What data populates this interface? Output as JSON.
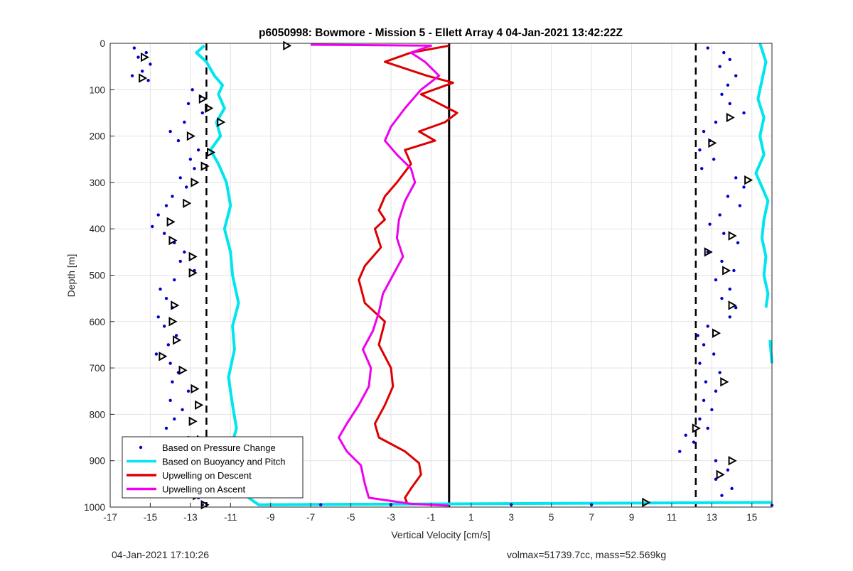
{
  "chart_data": {
    "type": "scatter",
    "title": "p6050998: Bowmore - Mission 5 - Ellett Array 4 04-Jan-2021 13:42:22Z",
    "xlabel": "Vertical Velocity [cm/s]",
    "ylabel": "Depth [m]",
    "xlim": [
      -17,
      16
    ],
    "ylim": [
      0,
      1000
    ],
    "y_reversed": true,
    "grid": true,
    "legend_position": "bottom-left",
    "x_ticks": [
      "-17",
      "-15",
      "-13",
      "-11",
      "-9",
      "-7",
      "-5",
      "-3",
      "-1",
      "1",
      "3",
      "5",
      "7",
      "9",
      "11",
      "13",
      "15"
    ],
    "y_ticks": [
      "0",
      "100",
      "200",
      "300",
      "400",
      "500",
      "600",
      "700",
      "800",
      "900",
      "1000"
    ],
    "colors": {
      "pressure": "#0000cc",
      "buoyancy": "#00e5ee",
      "descent": "#dd0000",
      "ascent": "#ee00ee",
      "reference": "#000000"
    },
    "legend": [
      {
        "label": "Based on Pressure Change",
        "marker": "dot",
        "color": "#0000cc"
      },
      {
        "label": "Based on Buoyancy and Pitch",
        "marker": "line",
        "color": "#00e5ee"
      },
      {
        "label": "Upwelling on Descent",
        "marker": "line",
        "color": "#dd0000"
      },
      {
        "label": "Upwelling on Ascent",
        "marker": "line",
        "color": "#ee00ee"
      }
    ],
    "reference_lines": {
      "dashed_x": [
        -12.2,
        12.2
      ],
      "solid_x": [
        -0.1
      ]
    },
    "series": [
      {
        "name": "Based on Buoyancy and Pitch (left)",
        "style": "line",
        "color": "#00e5ee",
        "points": [
          [
            -12.3,
            5
          ],
          [
            -12.7,
            20
          ],
          [
            -12.2,
            40
          ],
          [
            -11.8,
            70
          ],
          [
            -11.4,
            90
          ],
          [
            -11.6,
            110
          ],
          [
            -11.3,
            140
          ],
          [
            -11.7,
            170
          ],
          [
            -11.5,
            200
          ],
          [
            -12.0,
            230
          ],
          [
            -11.6,
            260
          ],
          [
            -11.2,
            300
          ],
          [
            -11.0,
            350
          ],
          [
            -11.3,
            400
          ],
          [
            -11.0,
            450
          ],
          [
            -10.9,
            500
          ],
          [
            -10.6,
            560
          ],
          [
            -10.9,
            610
          ],
          [
            -10.8,
            660
          ],
          [
            -11.1,
            720
          ],
          [
            -10.9,
            780
          ],
          [
            -10.7,
            830
          ],
          [
            -10.9,
            860
          ],
          [
            -10.6,
            900
          ],
          [
            -10.4,
            940
          ],
          [
            -10.1,
            980
          ],
          [
            -9.6,
            995
          ],
          [
            16,
            990
          ]
        ]
      },
      {
        "name": "Based on Buoyancy and Pitch (right)",
        "style": "line",
        "color": "#00e5ee",
        "points": [
          [
            15.4,
            0
          ],
          [
            15.7,
            40
          ],
          [
            15.5,
            80
          ],
          [
            15.3,
            120
          ],
          [
            15.6,
            160
          ],
          [
            15.4,
            200
          ],
          [
            15.6,
            240
          ],
          [
            15.2,
            280
          ],
          [
            15.4,
            300
          ],
          [
            15.8,
            340
          ],
          [
            15.6,
            380
          ],
          [
            15.5,
            420
          ],
          [
            15.7,
            460
          ],
          [
            15.6,
            500
          ],
          [
            15.8,
            540
          ],
          [
            15.7,
            570
          ]
        ]
      },
      {
        "name": "Based on Buoyancy and Pitch (right, lower)",
        "style": "line",
        "color": "#00e5ee",
        "points": [
          [
            15.9,
            640
          ],
          [
            16.0,
            690
          ]
        ]
      },
      {
        "name": "Upwelling on Descent",
        "style": "line",
        "color": "#dd0000",
        "points": [
          [
            -0.1,
            5
          ],
          [
            -2.0,
            20
          ],
          [
            -3.3,
            40
          ],
          [
            -1.2,
            70
          ],
          [
            0.1,
            85
          ],
          [
            -1.5,
            110
          ],
          [
            0.3,
            150
          ],
          [
            -0.3,
            170
          ],
          [
            -1.6,
            190
          ],
          [
            -0.8,
            210
          ],
          [
            -2.3,
            230
          ],
          [
            -2.0,
            260
          ],
          [
            -2.7,
            300
          ],
          [
            -3.3,
            330
          ],
          [
            -3.6,
            360
          ],
          [
            -3.3,
            380
          ],
          [
            -3.8,
            400
          ],
          [
            -3.5,
            440
          ],
          [
            -4.3,
            480
          ],
          [
            -4.6,
            510
          ],
          [
            -4.3,
            560
          ],
          [
            -3.3,
            600
          ],
          [
            -3.6,
            650
          ],
          [
            -3.0,
            700
          ],
          [
            -2.9,
            740
          ],
          [
            -3.3,
            780
          ],
          [
            -3.8,
            820
          ],
          [
            -3.6,
            850
          ],
          [
            -2.3,
            880
          ],
          [
            -1.6,
            905
          ],
          [
            -1.5,
            930
          ],
          [
            -2.0,
            960
          ],
          [
            -2.3,
            980
          ],
          [
            -2.2,
            990
          ]
        ]
      },
      {
        "name": "Upwelling on Ascent",
        "style": "line",
        "color": "#ee00ee",
        "points": [
          [
            -7.0,
            3
          ],
          [
            -1.0,
            5
          ],
          [
            -2.0,
            20
          ],
          [
            -1.3,
            40
          ],
          [
            -0.6,
            70
          ],
          [
            -1.5,
            100
          ],
          [
            -2.3,
            140
          ],
          [
            -3.0,
            180
          ],
          [
            -3.3,
            210
          ],
          [
            -2.7,
            240
          ],
          [
            -2.0,
            270
          ],
          [
            -1.8,
            300
          ],
          [
            -2.3,
            340
          ],
          [
            -2.6,
            380
          ],
          [
            -2.7,
            420
          ],
          [
            -2.4,
            460
          ],
          [
            -2.9,
            500
          ],
          [
            -3.4,
            540
          ],
          [
            -3.6,
            580
          ],
          [
            -3.9,
            620
          ],
          [
            -4.4,
            660
          ],
          [
            -4.0,
            700
          ],
          [
            -4.1,
            740
          ],
          [
            -4.6,
            780
          ],
          [
            -5.2,
            820
          ],
          [
            -5.6,
            850
          ],
          [
            -5.2,
            880
          ],
          [
            -4.5,
            910
          ],
          [
            -4.3,
            950
          ],
          [
            -4.1,
            980
          ],
          [
            -2.0,
            993
          ],
          [
            -0.1,
            997
          ]
        ]
      },
      {
        "name": "Based on Pressure Change (left)",
        "style": "dots",
        "color": "#0000cc",
        "points": [
          [
            -15.8,
            10
          ],
          [
            -15.2,
            20
          ],
          [
            -15.6,
            30
          ],
          [
            -15.0,
            45
          ],
          [
            -15.4,
            60
          ],
          [
            -15.9,
            70
          ],
          [
            -15.1,
            80
          ],
          [
            -12.9,
            100
          ],
          [
            -12.5,
            115
          ],
          [
            -13.1,
            130
          ],
          [
            -12.4,
            150
          ],
          [
            -13.3,
            170
          ],
          [
            -14.0,
            190
          ],
          [
            -13.6,
            210
          ],
          [
            -12.6,
            230
          ],
          [
            -13.0,
            250
          ],
          [
            -12.8,
            270
          ],
          [
            -13.5,
            290
          ],
          [
            -13.2,
            310
          ],
          [
            -13.9,
            330
          ],
          [
            -14.2,
            350
          ],
          [
            -14.6,
            370
          ],
          [
            -14.9,
            395
          ],
          [
            -14.3,
            410
          ],
          [
            -13.8,
            430
          ],
          [
            -13.3,
            450
          ],
          [
            -13.5,
            470
          ],
          [
            -12.8,
            490
          ],
          [
            -13.8,
            510
          ],
          [
            -14.5,
            530
          ],
          [
            -14.2,
            550
          ],
          [
            -13.9,
            570
          ],
          [
            -14.6,
            590
          ],
          [
            -14.3,
            610
          ],
          [
            -13.7,
            630
          ],
          [
            -14.1,
            650
          ],
          [
            -14.7,
            670
          ],
          [
            -14.0,
            690
          ],
          [
            -13.6,
            710
          ],
          [
            -13.9,
            730
          ],
          [
            -13.1,
            750
          ],
          [
            -14.0,
            770
          ],
          [
            -13.4,
            790
          ],
          [
            -13.8,
            810
          ],
          [
            -14.2,
            830
          ],
          [
            -13.1,
            850
          ],
          [
            -12.8,
            870
          ],
          [
            -13.3,
            890
          ],
          [
            -11.9,
            905
          ],
          [
            -12.6,
            920
          ],
          [
            -11.2,
            935
          ],
          [
            -12.9,
            950
          ],
          [
            -12.3,
            965
          ],
          [
            -12.6,
            980
          ],
          [
            -12.4,
            995
          ],
          [
            -6.5,
            995
          ],
          [
            -3,
            995
          ],
          [
            3,
            995
          ],
          [
            7,
            995
          ]
        ]
      },
      {
        "name": "Based on Pressure Change (right)",
        "style": "dots",
        "color": "#0000cc",
        "points": [
          [
            12.8,
            10
          ],
          [
            13.6,
            20
          ],
          [
            13.9,
            35
          ],
          [
            13.4,
            50
          ],
          [
            14.2,
            70
          ],
          [
            13.8,
            90
          ],
          [
            13.5,
            110
          ],
          [
            13.9,
            130
          ],
          [
            14.6,
            150
          ],
          [
            13.2,
            170
          ],
          [
            12.6,
            190
          ],
          [
            12.9,
            210
          ],
          [
            12.4,
            230
          ],
          [
            13.1,
            250
          ],
          [
            12.5,
            270
          ],
          [
            14.2,
            290
          ],
          [
            14.6,
            310
          ],
          [
            13.8,
            330
          ],
          [
            14.4,
            350
          ],
          [
            13.4,
            370
          ],
          [
            12.9,
            390
          ],
          [
            13.6,
            410
          ],
          [
            14.3,
            430
          ],
          [
            12.8,
            450
          ],
          [
            13.5,
            470
          ],
          [
            14.1,
            490
          ],
          [
            13.2,
            510
          ],
          [
            13.9,
            530
          ],
          [
            13.5,
            550
          ],
          [
            14.2,
            570
          ],
          [
            13.9,
            590
          ],
          [
            12.8,
            610
          ],
          [
            12.3,
            630
          ],
          [
            12.6,
            650
          ],
          [
            13.1,
            670
          ],
          [
            12.4,
            690
          ],
          [
            13.4,
            710
          ],
          [
            12.7,
            730
          ],
          [
            13.2,
            750
          ],
          [
            12.6,
            770
          ],
          [
            13.0,
            790
          ],
          [
            12.4,
            810
          ],
          [
            12.8,
            830
          ],
          [
            11.7,
            845
          ],
          [
            12.1,
            860
          ],
          [
            11.4,
            880
          ],
          [
            13.2,
            900
          ],
          [
            13.8,
            920
          ],
          [
            13.2,
            940
          ],
          [
            14.0,
            960
          ],
          [
            13.5,
            975
          ],
          [
            16,
            996
          ]
        ]
      },
      {
        "name": "Markers (left)",
        "style": "triangles",
        "color": "#000000",
        "points": [
          [
            -15.3,
            30
          ],
          [
            -15.4,
            75
          ],
          [
            -12.4,
            120
          ],
          [
            -12.1,
            140
          ],
          [
            -11.5,
            170
          ],
          [
            -13.0,
            200
          ],
          [
            -12.0,
            235
          ],
          [
            -12.3,
            265
          ],
          [
            -12.8,
            300
          ],
          [
            -13.2,
            345
          ],
          [
            -14.0,
            385
          ],
          [
            -13.9,
            425
          ],
          [
            -12.9,
            460
          ],
          [
            -12.9,
            495
          ],
          [
            -13.8,
            565
          ],
          [
            -13.9,
            600
          ],
          [
            -13.7,
            640
          ],
          [
            -14.4,
            675
          ],
          [
            -13.4,
            705
          ],
          [
            -12.8,
            745
          ],
          [
            -12.6,
            780
          ],
          [
            -12.9,
            815
          ],
          [
            -12.5,
            855
          ],
          [
            -12.3,
            885
          ],
          [
            -11.9,
            925
          ],
          [
            -12.9,
            950
          ],
          [
            -12.7,
            975
          ],
          [
            -12.3,
            995
          ],
          [
            -8.2,
            5
          ]
        ]
      },
      {
        "name": "Markers (right)",
        "style": "triangles",
        "color": "#000000",
        "points": [
          [
            13.9,
            160
          ],
          [
            13.0,
            215
          ],
          [
            14.8,
            295
          ],
          [
            14.0,
            415
          ],
          [
            12.8,
            450
          ],
          [
            13.7,
            490
          ],
          [
            14.0,
            565
          ],
          [
            13.2,
            625
          ],
          [
            13.6,
            730
          ],
          [
            12.2,
            830
          ],
          [
            14.0,
            900
          ],
          [
            13.4,
            930
          ],
          [
            9.7,
            990
          ]
        ]
      }
    ]
  },
  "footer": {
    "timestamp": "04-Jan-2021 17:10:26",
    "info": "volmax=51739.7cc, mass=52.569kg"
  }
}
